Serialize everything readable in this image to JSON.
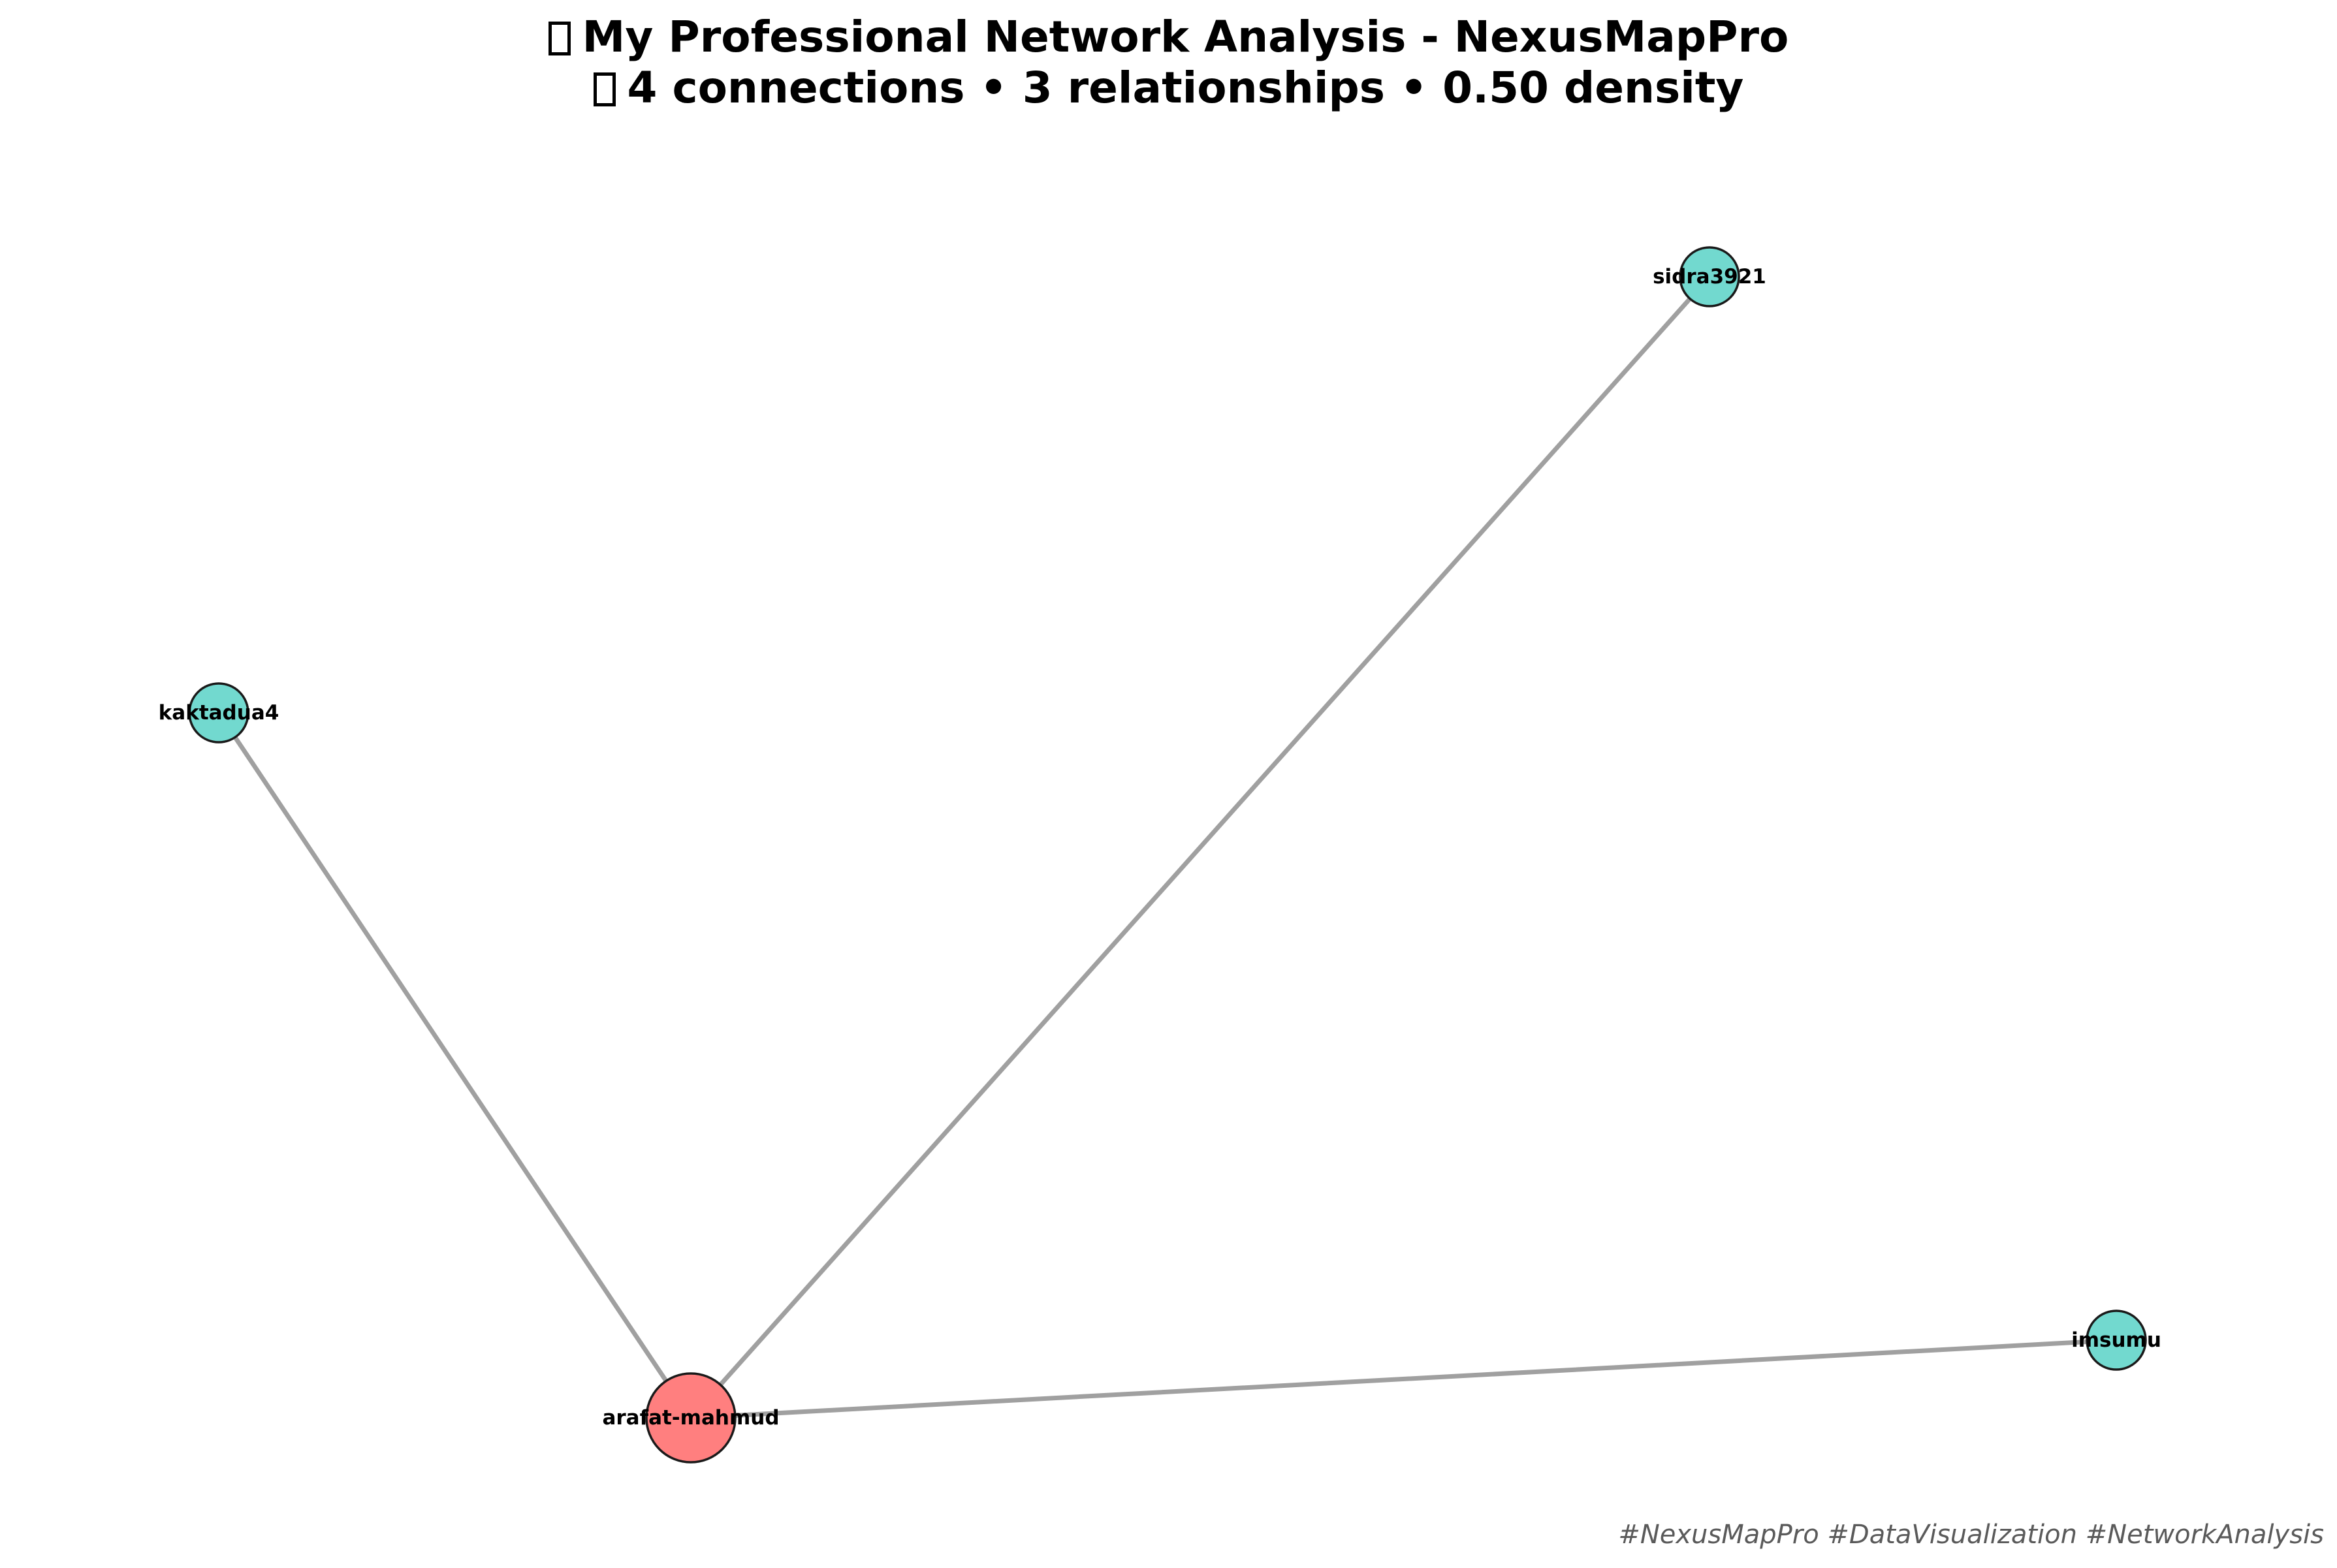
{
  "header": {
    "title_line_1": "My Professional Network Analysis - NexusMapPro",
    "title_line_2": "4 connections • 3 relationships • 0.50 density"
  },
  "graph": {
    "colors": {
      "center_node": "#FF7F7F",
      "connection_node": "#72D9CF",
      "edge": "#A0A0A0",
      "node_outline": "#1A1A1A"
    },
    "nodes": [
      {
        "id": "arafat-mahmud",
        "label": "arafat-mahmud",
        "role": "center"
      },
      {
        "id": "kaktadua4",
        "label": "kaktadua4",
        "role": "connection"
      },
      {
        "id": "sidra3921",
        "label": "sidra3921",
        "role": "connection"
      },
      {
        "id": "imsumu",
        "label": "imsumu",
        "role": "connection"
      }
    ],
    "edges": [
      {
        "source": "arafat-mahmud",
        "target": "kaktadua4"
      },
      {
        "source": "arafat-mahmud",
        "target": "sidra3921"
      },
      {
        "source": "arafat-mahmud",
        "target": "imsumu"
      }
    ]
  },
  "footer": {
    "hashtags": "#NexusMapPro #DataVisualization #NetworkAnalysis"
  }
}
